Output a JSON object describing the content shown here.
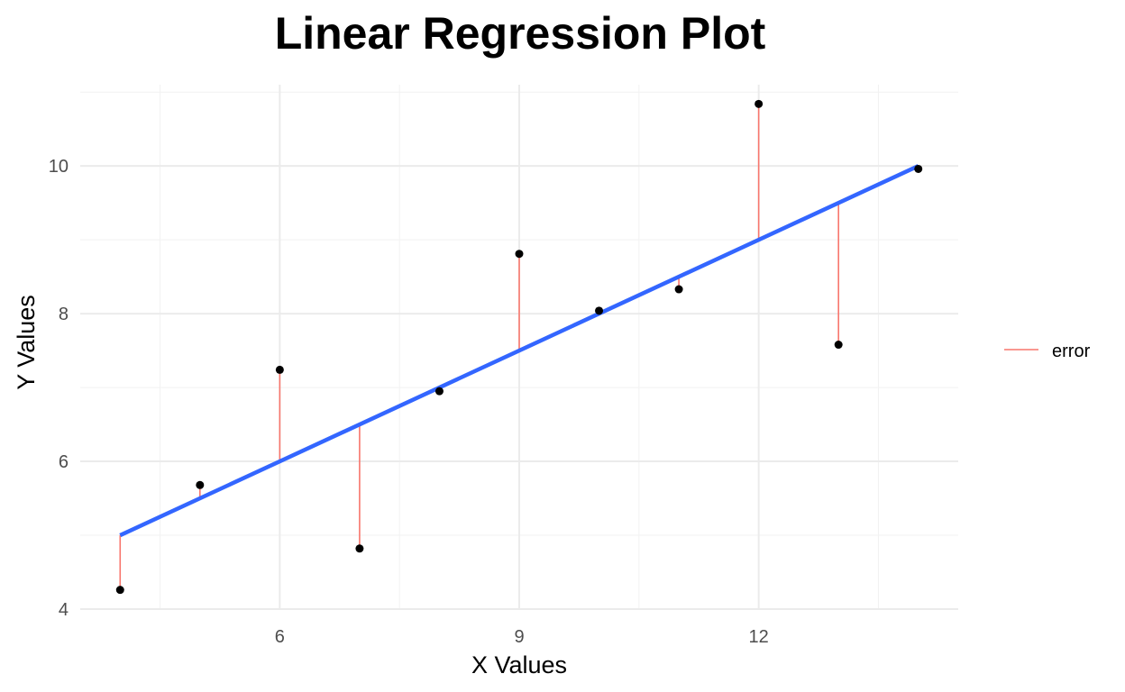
{
  "chart_data": {
    "type": "scatter",
    "title": "Linear Regression Plot",
    "xlabel": "X Values",
    "ylabel": "Y Values",
    "xlim": [
      3.5,
      14.5
    ],
    "ylim": [
      4,
      11.1
    ],
    "x_ticks": [
      6,
      9,
      12
    ],
    "x_tick_labels": [
      "6",
      "9",
      "12"
    ],
    "y_ticks": [
      4,
      6,
      8,
      10
    ],
    "y_tick_labels": [
      "4",
      "6",
      "8",
      "10"
    ],
    "grid": true,
    "legend_position": "right",
    "points": {
      "x": [
        4,
        5,
        6,
        7,
        8,
        9,
        10,
        11,
        12,
        13,
        14
      ],
      "y": [
        4.26,
        5.68,
        7.24,
        4.82,
        6.95,
        8.81,
        8.04,
        8.33,
        10.84,
        7.58,
        9.96
      ]
    },
    "regression_line": {
      "intercept": 3.0,
      "slope": 0.5,
      "x_range": [
        4,
        14
      ],
      "color": "#3366ff"
    },
    "series": [
      {
        "name": "error",
        "color": "#f8766d",
        "type": "residual-segment"
      }
    ]
  }
}
